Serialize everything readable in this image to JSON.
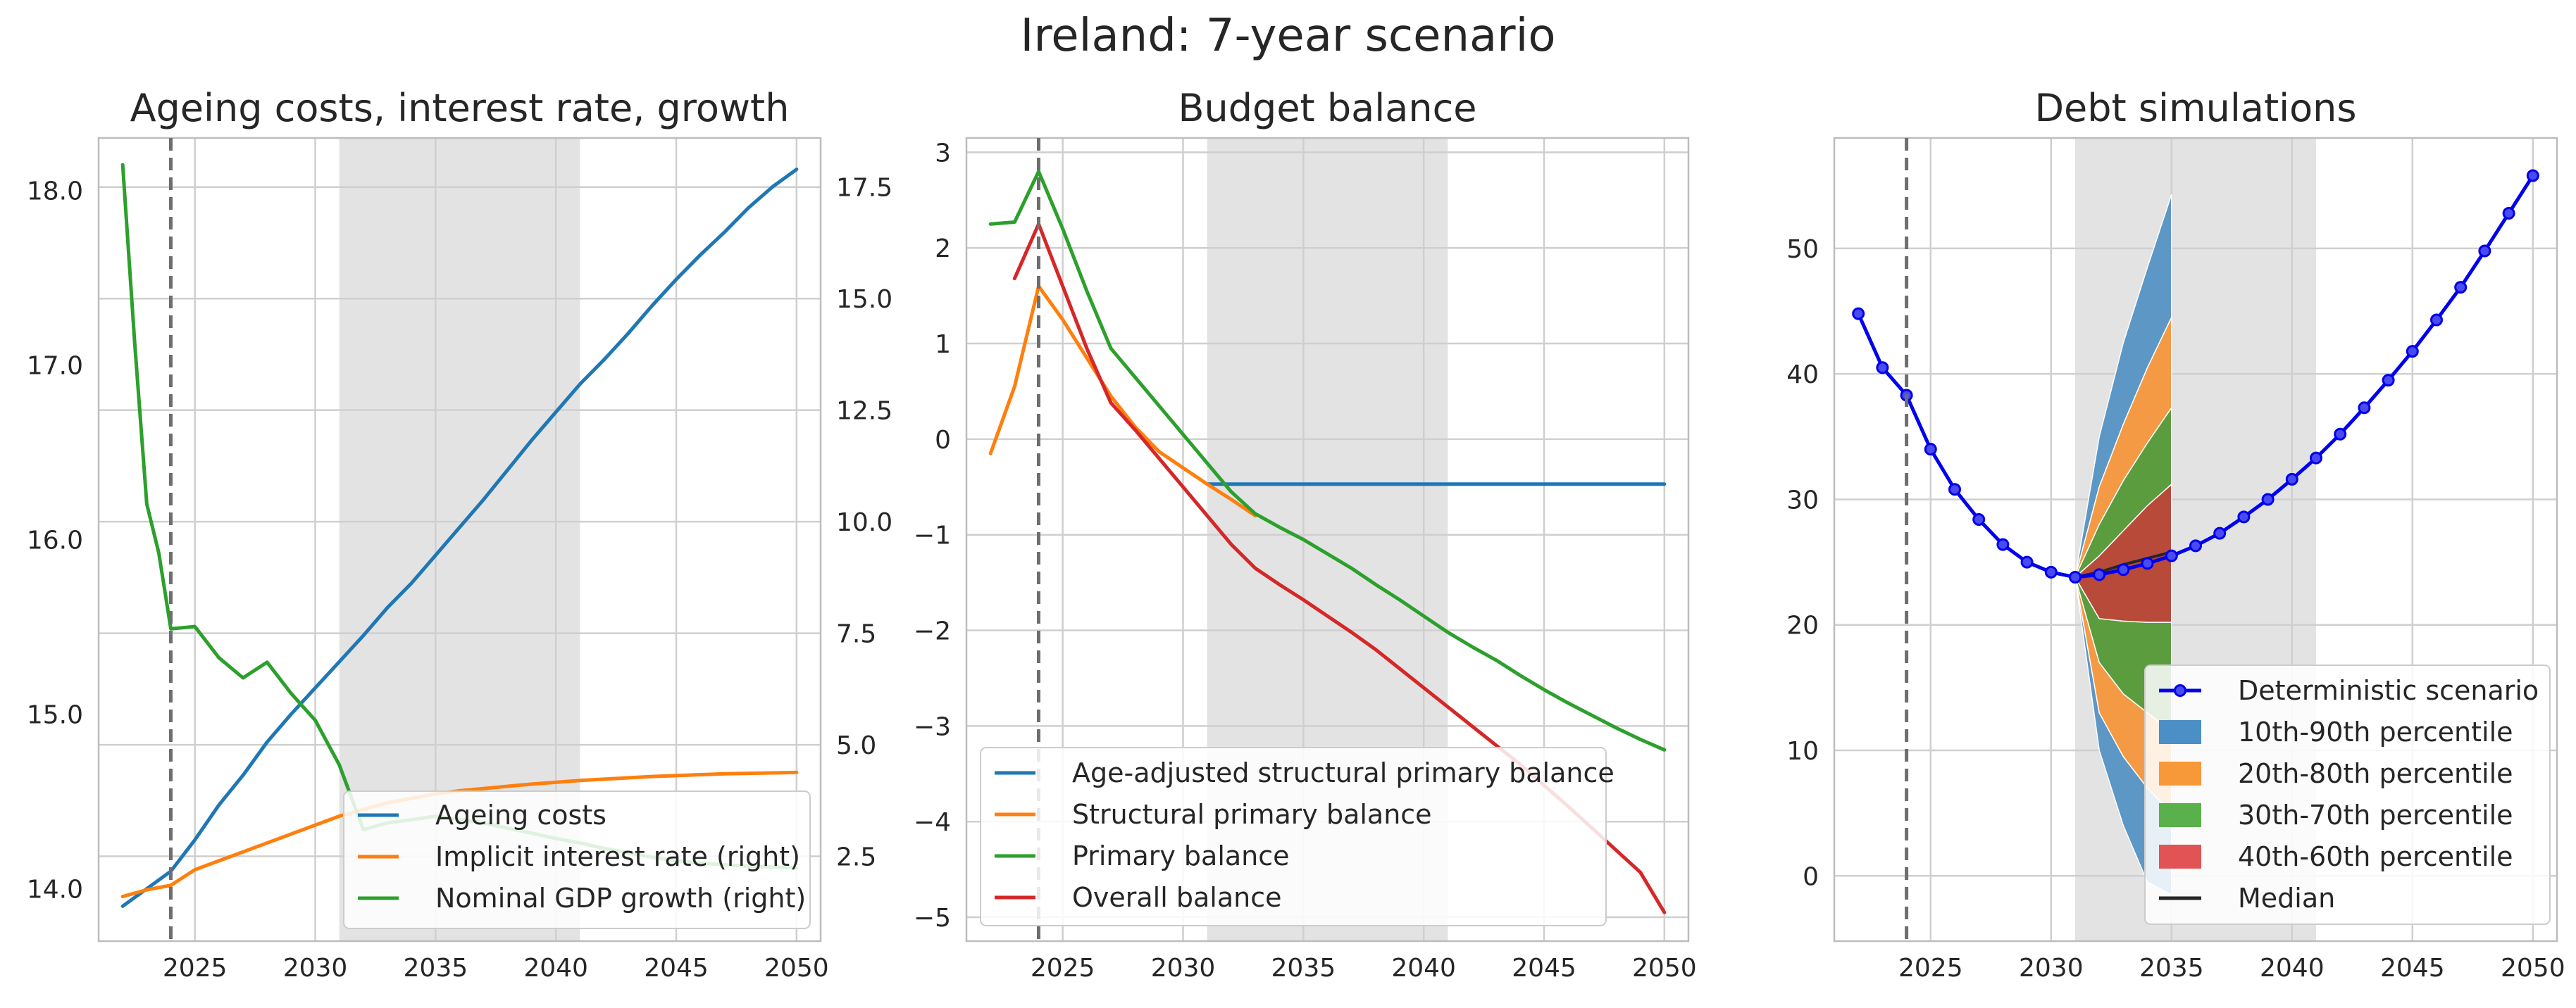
{
  "title": "Ireland: 7-year scenario",
  "chart_data": [
    {
      "type": "line",
      "title": "Ageing costs, interest rate, growth",
      "xlim": [
        2021,
        2051
      ],
      "ylim": [
        13.7,
        18.3
      ],
      "ylim_right": [
        0.6,
        18.6
      ],
      "xticks": [
        2025,
        2030,
        2035,
        2040,
        2045,
        2050
      ],
      "yticks": [
        14.0,
        15.0,
        16.0,
        17.0,
        18.0
      ],
      "yticks_right": [
        2.5,
        5.0,
        7.5,
        10.0,
        12.5,
        15.0,
        17.5
      ],
      "shade": [
        2031,
        2041
      ],
      "vline": 2024,
      "grid": true,
      "legend_position": "lower right",
      "series": [
        {
          "name": "Ageing costs",
          "color": "#1f77b4",
          "axis": "left",
          "x": [
            2022,
            2023,
            2024,
            2025,
            2026,
            2027,
            2028,
            2029,
            2030,
            2031,
            2032,
            2033,
            2034,
            2035,
            2036,
            2037,
            2038,
            2039,
            2040,
            2041,
            2042,
            2043,
            2044,
            2045,
            2046,
            2047,
            2048,
            2049,
            2050
          ],
          "y": [
            13.9,
            14.0,
            14.1,
            14.28,
            14.48,
            14.65,
            14.84,
            15.0,
            15.15,
            15.3,
            15.45,
            15.61,
            15.75,
            15.91,
            16.07,
            16.23,
            16.4,
            16.57,
            16.73,
            16.89,
            17.03,
            17.18,
            17.34,
            17.49,
            17.63,
            17.76,
            17.9,
            18.02,
            18.12
          ]
        },
        {
          "name": "Implicit interest rate (right)",
          "color": "#ff7f0e",
          "axis": "right",
          "x": [
            2022,
            2023,
            2024,
            2025,
            2026,
            2027,
            2028,
            2029,
            2030,
            2031,
            2032,
            2033,
            2034,
            2035,
            2036,
            2037,
            2038,
            2039,
            2040,
            2041,
            2042,
            2043,
            2044,
            2045,
            2046,
            2047,
            2048,
            2049,
            2050
          ],
          "y": [
            1.6,
            1.75,
            1.85,
            2.2,
            2.4,
            2.6,
            2.8,
            3.0,
            3.2,
            3.4,
            3.55,
            3.7,
            3.8,
            3.9,
            3.97,
            4.02,
            4.07,
            4.12,
            4.16,
            4.2,
            4.23,
            4.26,
            4.29,
            4.31,
            4.33,
            4.35,
            4.36,
            4.37,
            4.38
          ]
        },
        {
          "name": "Nominal GDP growth (right)",
          "color": "#2ca02c",
          "axis": "right",
          "x": [
            2022,
            2022.5,
            2023,
            2023.5,
            2024,
            2025,
            2026,
            2027,
            2028,
            2029,
            2030,
            2031,
            2032,
            2033,
            2034,
            2035,
            2036,
            2037,
            2038,
            2039,
            2040,
            2041,
            2042,
            2043,
            2044,
            2045,
            2046,
            2047,
            2048,
            2049,
            2050
          ],
          "y": [
            18.0,
            14.0,
            10.4,
            9.3,
            7.6,
            7.65,
            6.95,
            6.5,
            6.85,
            6.15,
            5.55,
            4.55,
            3.1,
            3.25,
            3.32,
            3.4,
            3.33,
            3.25,
            3.13,
            3.02,
            2.9,
            2.8,
            2.68,
            2.58,
            2.48,
            2.4,
            2.35,
            2.31,
            2.28,
            2.26,
            2.24
          ]
        }
      ]
    },
    {
      "type": "line",
      "title": "Budget balance",
      "xlim": [
        2021,
        2051
      ],
      "ylim": [
        -5.25,
        3.15
      ],
      "xticks": [
        2025,
        2030,
        2035,
        2040,
        2045,
        2050
      ],
      "yticks": [
        -5,
        -4,
        -3,
        -2,
        -1,
        0,
        1,
        2,
        3
      ],
      "shade": [
        2031,
        2041
      ],
      "vline": 2024,
      "grid": true,
      "legend_position": "lower left",
      "series": [
        {
          "name": "Age-adjusted structural primary balance",
          "color": "#1f77b4",
          "x": [
            2031,
            2032,
            2033,
            2035,
            2040,
            2045,
            2050
          ],
          "y": [
            -0.47,
            -0.47,
            -0.47,
            -0.47,
            -0.47,
            -0.47,
            -0.47
          ]
        },
        {
          "name": "Structural primary balance",
          "color": "#ff7f0e",
          "x": [
            2022,
            2023,
            2024,
            2025,
            2026,
            2027,
            2028,
            2029,
            2030,
            2031,
            2032,
            2033
          ],
          "y": [
            -0.15,
            0.55,
            1.6,
            1.25,
            0.85,
            0.45,
            0.13,
            -0.13,
            -0.3,
            -0.47,
            -0.63,
            -0.8
          ]
        },
        {
          "name": "Primary balance",
          "color": "#2ca02c",
          "x": [
            2022,
            2023,
            2024,
            2025,
            2026,
            2027,
            2028,
            2029,
            2030,
            2031,
            2032,
            2033,
            2034,
            2035,
            2036,
            2037,
            2038,
            2039,
            2040,
            2041,
            2042,
            2043,
            2044,
            2045,
            2046,
            2047,
            2048,
            2049,
            2050
          ],
          "y": [
            2.25,
            2.27,
            2.8,
            2.2,
            1.55,
            0.95,
            0.65,
            0.35,
            0.05,
            -0.25,
            -0.55,
            -0.78,
            -0.92,
            -1.05,
            -1.2,
            -1.35,
            -1.52,
            -1.68,
            -1.85,
            -2.02,
            -2.17,
            -2.31,
            -2.47,
            -2.62,
            -2.76,
            -2.89,
            -3.02,
            -3.14,
            -3.25
          ]
        },
        {
          "name": "Overall balance",
          "color": "#d62728",
          "x": [
            2023,
            2024,
            2025,
            2026,
            2027,
            2028,
            2029,
            2030,
            2031,
            2032,
            2033,
            2034,
            2035,
            2036,
            2037,
            2038,
            2039,
            2040,
            2041,
            2042,
            2043,
            2044,
            2045,
            2046,
            2047,
            2048,
            2049,
            2050
          ],
          "y": [
            1.68,
            2.25,
            1.6,
            0.95,
            0.38,
            0.1,
            -0.2,
            -0.5,
            -0.8,
            -1.1,
            -1.35,
            -1.52,
            -1.68,
            -1.85,
            -2.02,
            -2.2,
            -2.4,
            -2.6,
            -2.8,
            -3.0,
            -3.2,
            -3.4,
            -3.62,
            -3.84,
            -4.07,
            -4.3,
            -4.53,
            -4.95
          ]
        }
      ]
    },
    {
      "type": "area",
      "title": "Debt simulations",
      "xlim": [
        2021,
        2051
      ],
      "ylim": [
        -5.2,
        58.8
      ],
      "xticks": [
        2025,
        2030,
        2035,
        2040,
        2045,
        2050
      ],
      "yticks": [
        0,
        10,
        20,
        30,
        40,
        50
      ],
      "shade": [
        2031,
        2041
      ],
      "vline": 2024,
      "grid": true,
      "legend_position": "lower right",
      "fan": {
        "x": [
          2031,
          2032,
          2033,
          2034,
          2035
        ],
        "p10": [
          23.8,
          10.0,
          4.0,
          -0.5,
          -1.5
        ],
        "p20": [
          23.8,
          13.0,
          9.5,
          7.0,
          5.0
        ],
        "p30": [
          23.8,
          17.0,
          14.5,
          13.0,
          11.5
        ],
        "p40": [
          23.8,
          20.5,
          20.3,
          20.2,
          20.2
        ],
        "p60": [
          23.8,
          25.5,
          27.5,
          29.5,
          31.2
        ],
        "p70": [
          23.8,
          28.0,
          31.5,
          34.5,
          37.3
        ],
        "p80": [
          23.8,
          31.0,
          36.0,
          40.5,
          44.5
        ],
        "p90": [
          23.8,
          35.0,
          42.5,
          48.5,
          54.3
        ],
        "median": [
          23.8,
          24.2,
          24.8,
          25.3,
          25.8
        ]
      },
      "bands": [
        {
          "name": "10th-90th percentile",
          "color": "#5c97c6"
        },
        {
          "name": "20th-80th percentile",
          "color": "#f59a44"
        },
        {
          "name": "30th-70th percentile",
          "color": "#5a9c3e"
        },
        {
          "name": "40th-60th percentile",
          "color": "#b84a3a"
        }
      ],
      "legend_colors": {
        "10th-90th percentile": "#4c8fc6",
        "20th-80th percentile": "#f89939",
        "30th-70th percentile": "#5ab04a",
        "40th-60th percentile": "#e15355"
      },
      "median_name": "Median",
      "median_color": "#262626",
      "series": [
        {
          "name": "Deterministic scenario",
          "color": "#0000ee",
          "marker": "o",
          "x": [
            2022,
            2023,
            2024,
            2025,
            2026,
            2027,
            2028,
            2029,
            2030,
            2031,
            2032,
            2033,
            2034,
            2035,
            2036,
            2037,
            2038,
            2039,
            2040,
            2041,
            2042,
            2043,
            2044,
            2045,
            2046,
            2047,
            2048,
            2049,
            2050
          ],
          "y": [
            44.8,
            40.5,
            38.3,
            34.0,
            30.8,
            28.4,
            26.4,
            25.0,
            24.2,
            23.8,
            24.0,
            24.4,
            24.9,
            25.5,
            26.3,
            27.3,
            28.6,
            30.0,
            31.6,
            33.3,
            35.2,
            37.3,
            39.5,
            41.8,
            44.3,
            46.9,
            49.8,
            52.8,
            55.8
          ]
        }
      ]
    }
  ]
}
